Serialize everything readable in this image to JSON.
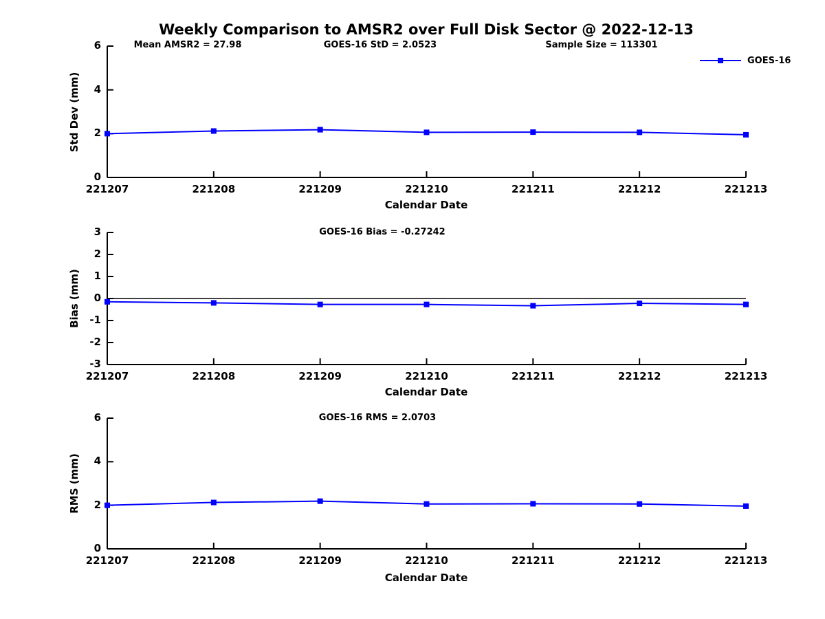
{
  "figure": {
    "title": "Weekly Comparison to AMSR2 over Full Disk Sector @ 2022-12-13",
    "background_color": "#ffffff",
    "text_color": "#000000"
  },
  "legend": {
    "label": "GOES-16",
    "color": "#0000ff",
    "marker": "square",
    "position": "top-right-outside"
  },
  "chart_data": [
    {
      "type": "line",
      "panel": "std-dev",
      "annotations": [
        "Mean AMSR2 = 27.98",
        "GOES-16 StD = 2.0523",
        "Sample Size = 113301"
      ],
      "categories": [
        "221207",
        "221208",
        "221209",
        "221210",
        "221211",
        "221212",
        "221213"
      ],
      "series": [
        {
          "name": "GOES-16",
          "color": "#0000ff",
          "marker": "square",
          "values": [
            2.0,
            2.12,
            2.18,
            2.06,
            2.07,
            2.06,
            1.95
          ]
        }
      ],
      "xlabel": "Calendar Date",
      "ylabel": "Std Dev (mm)",
      "ylim": [
        0,
        6
      ],
      "yticks": [
        0,
        2,
        4,
        6
      ],
      "grid": false,
      "zero_line": false
    },
    {
      "type": "line",
      "panel": "bias",
      "annotations": [
        "GOES-16 Bias  = -0.27242"
      ],
      "categories": [
        "221207",
        "221208",
        "221209",
        "221210",
        "221211",
        "221212",
        "221213"
      ],
      "series": [
        {
          "name": "GOES-16",
          "color": "#0000ff",
          "marker": "square",
          "values": [
            -0.15,
            -0.2,
            -0.27,
            -0.27,
            -0.33,
            -0.22,
            -0.27
          ]
        }
      ],
      "xlabel": "Calendar Date",
      "ylabel": "Bias (mm)",
      "ylim": [
        -3,
        3
      ],
      "yticks": [
        -3,
        -2,
        -1,
        0,
        1,
        2,
        3
      ],
      "grid": false,
      "zero_line": true
    },
    {
      "type": "line",
      "panel": "rms",
      "annotations": [
        "GOES-16 RMS = 2.0703"
      ],
      "categories": [
        "221207",
        "221208",
        "221209",
        "221210",
        "221211",
        "221212",
        "221213"
      ],
      "series": [
        {
          "name": "GOES-16",
          "color": "#0000ff",
          "marker": "square",
          "values": [
            2.0,
            2.13,
            2.19,
            2.06,
            2.07,
            2.06,
            1.96
          ]
        }
      ],
      "xlabel": "Calendar Date",
      "ylabel": "RMS (mm)",
      "ylim": [
        0,
        6
      ],
      "yticks": [
        0,
        2,
        4,
        6
      ],
      "grid": false,
      "zero_line": false
    }
  ]
}
